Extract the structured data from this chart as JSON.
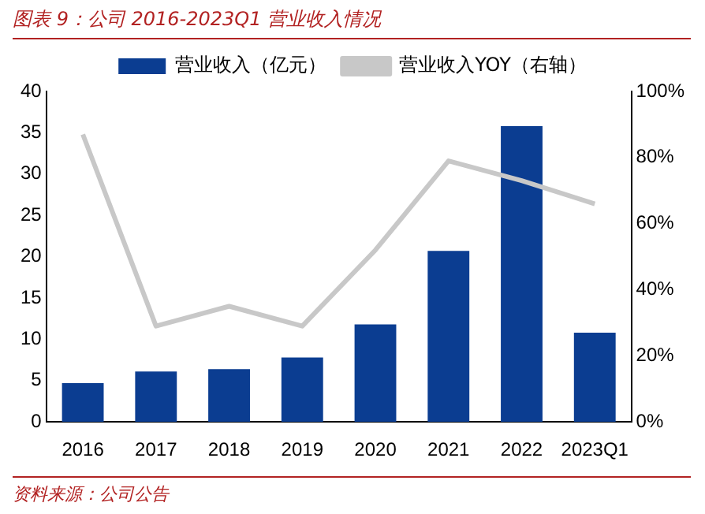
{
  "chart_data": {
    "type": "bar",
    "title": "图表 9：公司 2016-2023Q1 营业收入情况",
    "categories": [
      "2016",
      "2017",
      "2018",
      "2019",
      "2020",
      "2021",
      "2022",
      "2023Q1"
    ],
    "series": [
      {
        "name": "营业收入（亿元）",
        "color": "#0b3d91",
        "values": [
          4.7,
          6.1,
          6.4,
          7.8,
          11.8,
          20.7,
          35.8,
          10.8
        ]
      },
      {
        "name": "营业收入YOY（右轴）",
        "type": "line",
        "axis": "y2",
        "color": "#c8c8c8",
        "values": [
          87,
          29,
          35,
          29,
          52,
          79,
          73,
          66
        ]
      }
    ],
    "ylim": [
      0,
      40
    ],
    "yticks": [
      0,
      5,
      10,
      15,
      20,
      25,
      30,
      35,
      40
    ],
    "y2lim": [
      0,
      100
    ],
    "y2ticks": [
      {
        "value": 0,
        "label": "0%"
      },
      {
        "value": 20,
        "label": "20%"
      },
      {
        "value": 40,
        "label": "40%"
      },
      {
        "value": 60,
        "label": "60%"
      },
      {
        "value": 80,
        "label": "80%"
      },
      {
        "value": 100,
        "label": "100%"
      }
    ],
    "grid": false,
    "legend": "top",
    "marker": "none",
    "line_style": "solid",
    "annotations": [
      "资料来源：公司公告"
    ]
  }
}
